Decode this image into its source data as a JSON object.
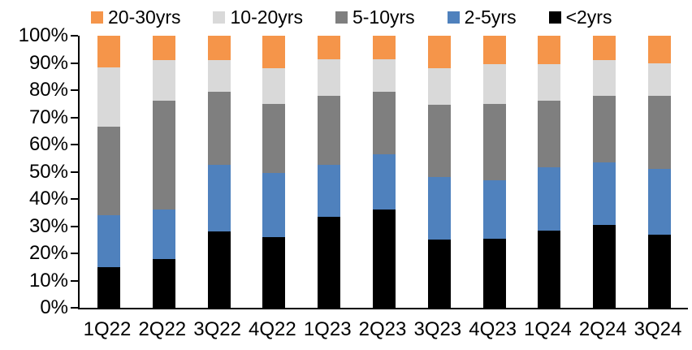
{
  "chart_data": {
    "type": "bar",
    "stacked": true,
    "title": "",
    "xlabel": "",
    "ylabel": "",
    "grid": false,
    "categories": [
      "1Q22",
      "2Q22",
      "3Q22",
      "4Q22",
      "1Q23",
      "2Q23",
      "3Q23",
      "4Q23",
      "1Q24",
      "2Q24",
      "3Q24"
    ],
    "series": [
      {
        "name": "<2yrs",
        "color": "#000000",
        "values": [
          15,
          18,
          28,
          26,
          33.5,
          36,
          25,
          25.5,
          28.5,
          30.5,
          27
        ]
      },
      {
        "name": "2-5yrs",
        "color": "#4F81BD",
        "values": [
          19,
          18,
          24.5,
          23.5,
          19,
          20.5,
          23,
          21.5,
          23,
          23,
          24
        ]
      },
      {
        "name": "5-10yrs",
        "color": "#7F7F7F",
        "values": [
          32.5,
          40,
          27,
          25.5,
          25.5,
          23,
          26.5,
          28,
          24.5,
          24.5,
          27
        ]
      },
      {
        "name": "10-20yrs",
        "color": "#D9D9D9",
        "values": [
          22,
          15,
          11.5,
          13,
          13.5,
          12,
          13.5,
          14.5,
          13.5,
          13,
          12
        ]
      },
      {
        "name": "20-30yrs",
        "color": "#F5954A",
        "values": [
          11.5,
          9,
          9,
          12,
          8.5,
          8.5,
          12,
          10.5,
          10.5,
          9,
          10
        ]
      }
    ],
    "legend": {
      "position": "top",
      "order": [
        "20-30yrs",
        "10-20yrs",
        "5-10yrs",
        "2-5yrs",
        "<2yrs"
      ]
    },
    "y_axis": {
      "min": 0,
      "max": 100,
      "step": 10,
      "tick_suffix": "%",
      "tick_labels": [
        "0%",
        "10%",
        "20%",
        "30%",
        "40%",
        "50%",
        "60%",
        "70%",
        "80%",
        "90%",
        "100%"
      ]
    },
    "colors": {
      "axis": "#000000",
      "background": "#FFFFFF"
    }
  }
}
